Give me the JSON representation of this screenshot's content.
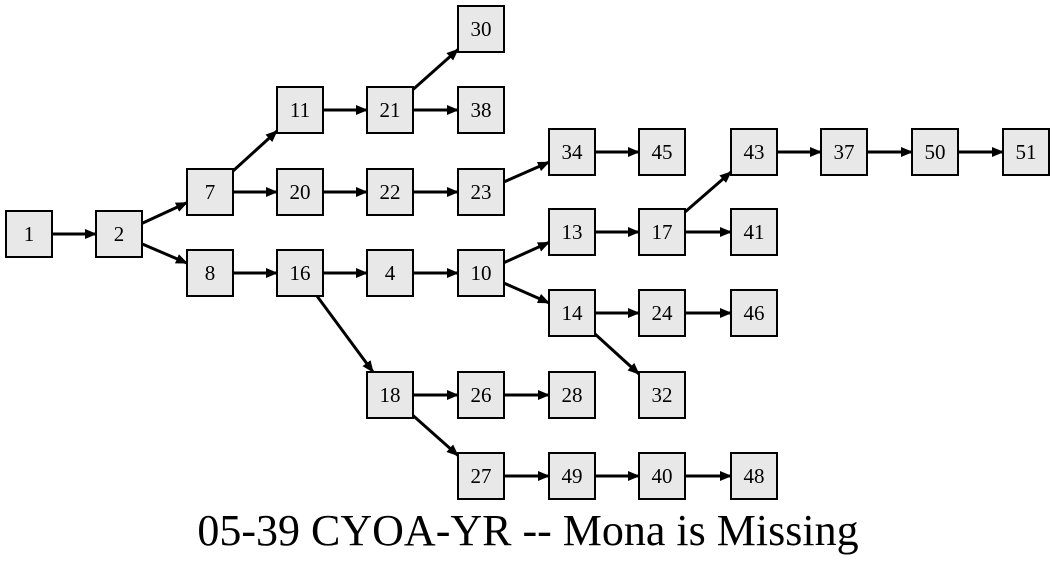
{
  "title": "05-39 CYOA-YR -- Mona is Missing",
  "colors": {
    "node_fill": "#e8e8e8",
    "stroke": "#000000",
    "background": "#ffffff"
  },
  "nodes": [
    "1",
    "2",
    "7",
    "8",
    "11",
    "20",
    "16",
    "21",
    "22",
    "4",
    "18",
    "30",
    "38",
    "23",
    "10",
    "26",
    "27",
    "34",
    "13",
    "14",
    "28",
    "49",
    "45",
    "17",
    "24",
    "32",
    "40",
    "43",
    "41",
    "46",
    "48",
    "37",
    "50",
    "51"
  ],
  "edges": [
    [
      "1",
      "2"
    ],
    [
      "2",
      "7"
    ],
    [
      "2",
      "8"
    ],
    [
      "7",
      "11"
    ],
    [
      "7",
      "20"
    ],
    [
      "8",
      "16"
    ],
    [
      "11",
      "21"
    ],
    [
      "21",
      "30"
    ],
    [
      "21",
      "38"
    ],
    [
      "20",
      "22"
    ],
    [
      "22",
      "23"
    ],
    [
      "23",
      "34"
    ],
    [
      "34",
      "45"
    ],
    [
      "16",
      "4"
    ],
    [
      "16",
      "18"
    ],
    [
      "4",
      "10"
    ],
    [
      "10",
      "13"
    ],
    [
      "10",
      "14"
    ],
    [
      "13",
      "17"
    ],
    [
      "17",
      "43"
    ],
    [
      "17",
      "41"
    ],
    [
      "43",
      "37"
    ],
    [
      "37",
      "50"
    ],
    [
      "50",
      "51"
    ],
    [
      "14",
      "24"
    ],
    [
      "14",
      "32"
    ],
    [
      "24",
      "46"
    ],
    [
      "18",
      "26"
    ],
    [
      "18",
      "27"
    ],
    [
      "26",
      "28"
    ],
    [
      "27",
      "49"
    ],
    [
      "49",
      "40"
    ],
    [
      "40",
      "48"
    ]
  ]
}
